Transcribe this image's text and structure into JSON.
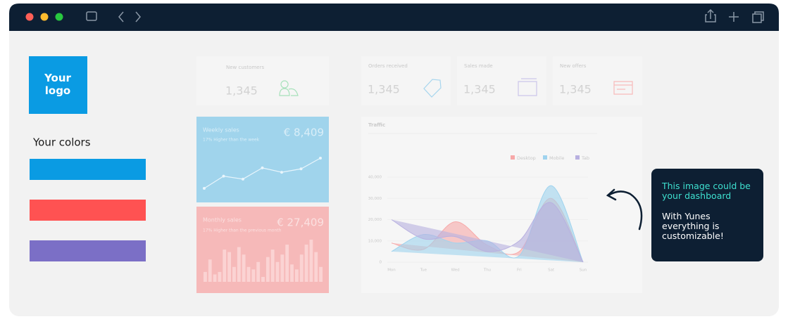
{
  "branding": {
    "logo": "Your logo",
    "colors_title": "Your colors",
    "colors": [
      "#0a9be3",
      "#ff5252",
      "#7b6fc6"
    ]
  },
  "cards": [
    {
      "label": "New customers",
      "value": "1,345"
    },
    {
      "label": "Orders received",
      "value": "1,345"
    },
    {
      "label": "Sales made",
      "value": "1,345"
    },
    {
      "label": "New offers",
      "value": "1,345"
    }
  ],
  "weekly": {
    "title": "Weekly sales",
    "amount": "€ 8,409",
    "note": "17% Higher than the week"
  },
  "monthly": {
    "title": "Monthly sales",
    "amount": "€ 27,409",
    "note": "17% Higher than the previous month"
  },
  "callout": {
    "headline": "This image could be your dashboard",
    "body": "With Yunes everything is customizable!"
  },
  "chart_data": [
    {
      "type": "area",
      "title": "Traffic",
      "categories": [
        "Mon",
        "Tue",
        "Wed",
        "Thu",
        "Fri",
        "Sat",
        "Sun"
      ],
      "series": [
        {
          "name": "Desktop",
          "color": "#f7a8a8",
          "values": [
            9000,
            6000,
            19000,
            8000,
            5000,
            30000,
            0
          ]
        },
        {
          "name": "Mobile",
          "color": "#9fd3ee",
          "values": [
            5000,
            13000,
            9000,
            10000,
            3000,
            36000,
            0
          ]
        },
        {
          "name": "Tab",
          "color": "#b8b0e0",
          "values": [
            20000,
            11000,
            12000,
            5000,
            10000,
            28000,
            0
          ]
        }
      ],
      "ylim": [
        0,
        40000
      ],
      "yticks": [
        0,
        {
          "value": 10000,
          "label": "10,000"
        },
        {
          "value": 20000,
          "label": "20,000"
        },
        {
          "value": 30000,
          "label": "30,000"
        },
        {
          "value": 40000,
          "label": "40,000"
        }
      ]
    },
    {
      "type": "line",
      "color": "#e8f5fc",
      "values": [
        10,
        35,
        29,
        52,
        43,
        50,
        72
      ]
    },
    {
      "type": "bar",
      "color": "#fbd3d3",
      "values": [
        20,
        45,
        15,
        20,
        65,
        60,
        30,
        70,
        55,
        30,
        25,
        40,
        10,
        50,
        65,
        40,
        55,
        75,
        35,
        25,
        55,
        75,
        85,
        60,
        30
      ]
    }
  ]
}
